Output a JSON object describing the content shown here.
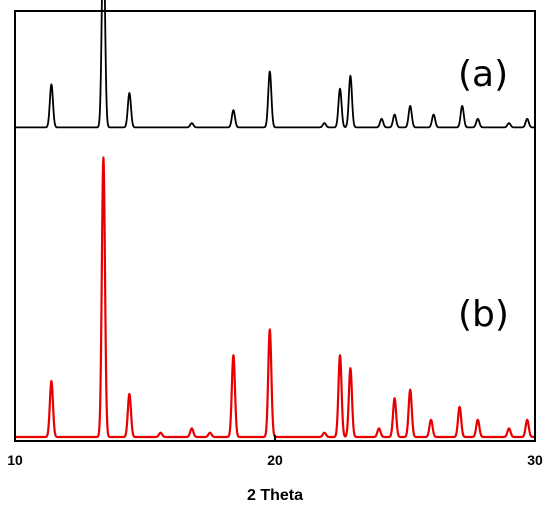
{
  "chart_data": {
    "type": "line",
    "title": "",
    "xlabel": "2 Theta",
    "ylabel": "",
    "xlim": [
      10,
      30
    ],
    "ylim": [
      0,
      1
    ],
    "x_ticks": [
      "10",
      "20",
      "30"
    ],
    "grid": false,
    "legend": "none",
    "panel_labels": [
      "(a)",
      "(b)"
    ],
    "series": [
      {
        "label": "(a)",
        "color": "#000000",
        "baseline_fraction": 0.72,
        "peaks": [
          {
            "x": 11.4,
            "h": 0.1
          },
          {
            "x": 13.4,
            "h": 0.47
          },
          {
            "x": 14.4,
            "h": 0.08
          },
          {
            "x": 16.8,
            "h": 0.01
          },
          {
            "x": 18.4,
            "h": 0.04
          },
          {
            "x": 19.8,
            "h": 0.13
          },
          {
            "x": 21.9,
            "h": 0.01
          },
          {
            "x": 22.5,
            "h": 0.09
          },
          {
            "x": 22.9,
            "h": 0.12
          },
          {
            "x": 24.1,
            "h": 0.02
          },
          {
            "x": 24.6,
            "h": 0.03
          },
          {
            "x": 25.2,
            "h": 0.05
          },
          {
            "x": 26.1,
            "h": 0.03
          },
          {
            "x": 27.2,
            "h": 0.05
          },
          {
            "x": 27.8,
            "h": 0.02
          },
          {
            "x": 29.0,
            "h": 0.01
          },
          {
            "x": 29.7,
            "h": 0.02
          }
        ]
      },
      {
        "label": "(b)",
        "color": "#e80000",
        "baseline_fraction": 0.0,
        "peaks": [
          {
            "x": 11.4,
            "h": 0.13
          },
          {
            "x": 13.4,
            "h": 0.65
          },
          {
            "x": 14.4,
            "h": 0.1
          },
          {
            "x": 15.6,
            "h": 0.01
          },
          {
            "x": 16.8,
            "h": 0.02
          },
          {
            "x": 17.5,
            "h": 0.01
          },
          {
            "x": 18.4,
            "h": 0.19
          },
          {
            "x": 19.8,
            "h": 0.25
          },
          {
            "x": 21.9,
            "h": 0.01
          },
          {
            "x": 22.5,
            "h": 0.19
          },
          {
            "x": 22.9,
            "h": 0.16
          },
          {
            "x": 24.0,
            "h": 0.02
          },
          {
            "x": 24.6,
            "h": 0.09
          },
          {
            "x": 25.2,
            "h": 0.11
          },
          {
            "x": 26.0,
            "h": 0.04
          },
          {
            "x": 27.1,
            "h": 0.07
          },
          {
            "x": 27.8,
            "h": 0.04
          },
          {
            "x": 29.0,
            "h": 0.02
          },
          {
            "x": 29.7,
            "h": 0.04
          }
        ]
      }
    ]
  }
}
